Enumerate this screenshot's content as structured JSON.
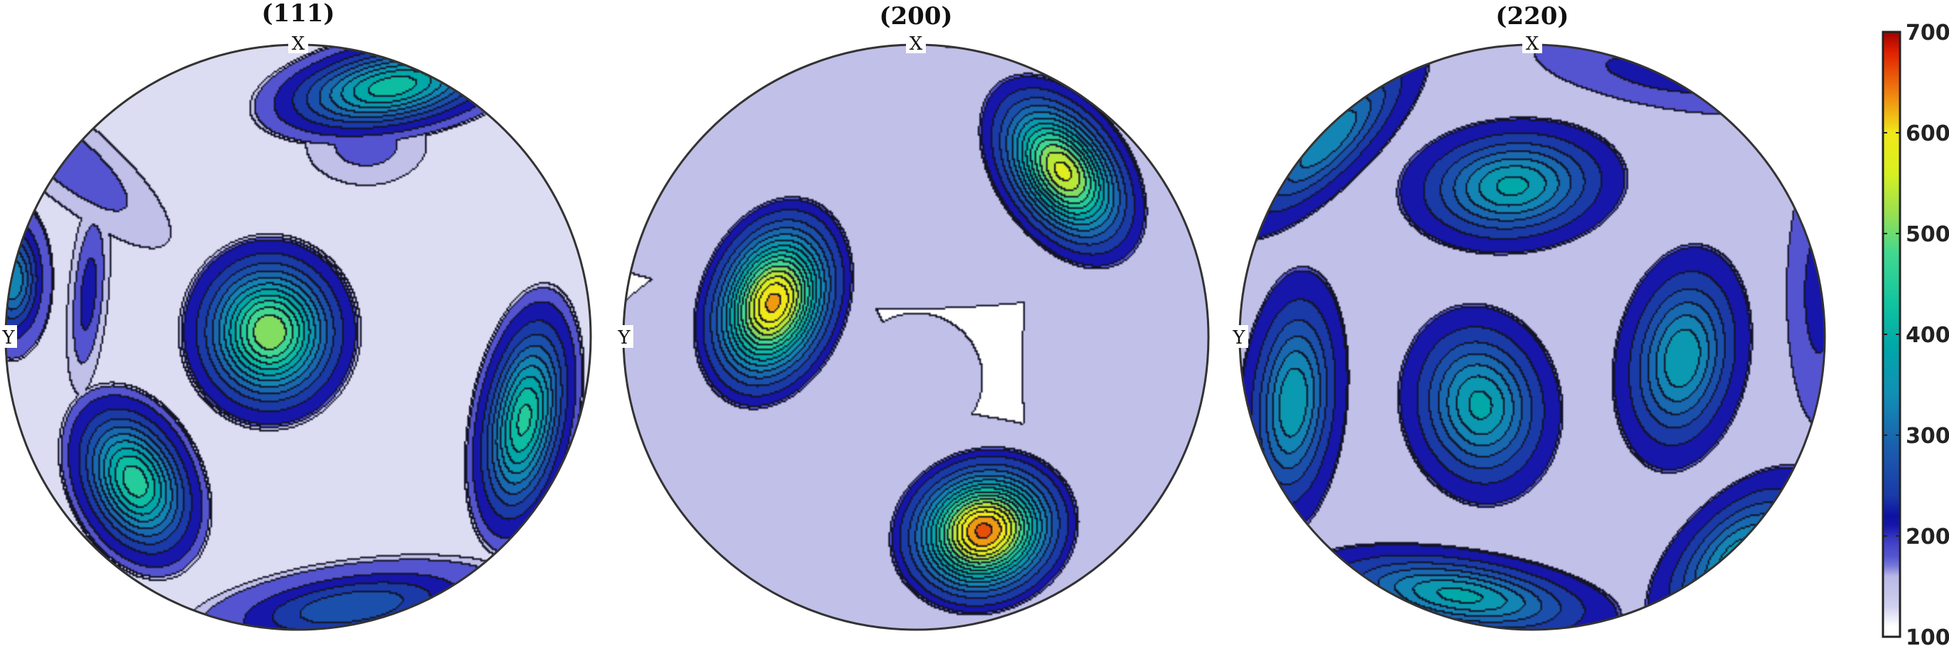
{
  "chart_data": {
    "type": "heatmap",
    "subtype": "pole-figure-contour",
    "figures": [
      {
        "title": "(111)",
        "x_label": "X",
        "y_label": "Y",
        "background_level": 125,
        "outer_level": 100,
        "peaks": [
          {
            "cx": -0.1,
            "cy": -0.02,
            "sx": 0.13,
            "sy": 0.14,
            "angle": 0,
            "amp": 540,
            "floor": 185
          },
          {
            "cx": 0.32,
            "cy": -0.86,
            "sx": 0.21,
            "sy": 0.08,
            "angle": -10,
            "amp": 440,
            "floor": 170
          },
          {
            "cx": -0.56,
            "cy": 0.49,
            "sx": 0.1,
            "sy": 0.15,
            "angle": -25,
            "amp": 470,
            "floor": 175
          },
          {
            "cx": 0.77,
            "cy": 0.28,
            "sx": 0.08,
            "sy": 0.2,
            "angle": 10,
            "amp": 460,
            "floor": 175
          },
          {
            "cx": -0.8,
            "cy": -0.62,
            "sx": 0.2,
            "sy": 0.06,
            "angle": 40,
            "amp": 210,
            "floor": 160
          },
          {
            "cx": 0.23,
            "cy": -0.66,
            "sx": 0.09,
            "sy": 0.06,
            "angle": 0,
            "amp": 200,
            "floor": 160
          },
          {
            "cx": 0.18,
            "cy": 0.92,
            "sx": 0.25,
            "sy": 0.07,
            "angle": -8,
            "amp": 300,
            "floor": 165
          },
          {
            "cx": -0.98,
            "cy": -0.2,
            "sx": 0.06,
            "sy": 0.12,
            "angle": 0,
            "amp": 360,
            "floor": 165
          },
          {
            "cx": -0.72,
            "cy": -0.15,
            "sx": 0.03,
            "sy": 0.15,
            "angle": 5,
            "amp": 230,
            "floor": 160
          }
        ]
      },
      {
        "title": "(200)",
        "x_label": "X",
        "y_label": "Y",
        "background_level": 60,
        "outer_level": 60,
        "peaks": [
          {
            "cx": -0.49,
            "cy": -0.12,
            "sx": 0.11,
            "sy": 0.16,
            "angle": 20,
            "amp": 640,
            "floor": 185
          },
          {
            "cx": 0.5,
            "cy": -0.57,
            "sx": 0.1,
            "sy": 0.16,
            "angle": -35,
            "amp": 580,
            "floor": 185
          },
          {
            "cx": 0.23,
            "cy": 0.66,
            "sx": 0.14,
            "sy": 0.12,
            "angle": -20,
            "amp": 670,
            "floor": 185
          },
          {
            "cx": 0.0,
            "cy": 0.14,
            "sx": 0.1,
            "sy": 0.1,
            "angle": 0,
            "amp": 160,
            "floor": 150
          },
          {
            "cx": 0.1,
            "cy": 0.7,
            "sx": 0.7,
            "sy": 0.2,
            "angle": 10,
            "amp": 160,
            "floor": 150
          },
          {
            "cx": 0.7,
            "cy": 0.1,
            "sx": 0.15,
            "sy": 0.6,
            "angle": 0,
            "amp": 160,
            "floor": 150
          },
          {
            "cx": -0.05,
            "cy": -0.55,
            "sx": 0.6,
            "sy": 0.2,
            "angle": 0,
            "amp": 160,
            "floor": 150
          },
          {
            "cx": -0.7,
            "cy": 0.4,
            "sx": 0.25,
            "sy": 0.35,
            "angle": 30,
            "amp": 160,
            "floor": 150
          },
          {
            "cx": -0.83,
            "cy": 0.85,
            "sx": 0.1,
            "sy": 0.1,
            "angle": 0,
            "amp": 170,
            "floor": 150
          }
        ]
      },
      {
        "title": "(220)",
        "x_label": "X",
        "y_label": "Y",
        "background_level": 150,
        "outer_level": 150,
        "peaks": [
          {
            "cx": -0.07,
            "cy": -0.52,
            "sx": 0.17,
            "sy": 0.1,
            "angle": -5,
            "amp": 400,
            "floor": 200
          },
          {
            "cx": -0.18,
            "cy": 0.23,
            "sx": 0.12,
            "sy": 0.15,
            "angle": -10,
            "amp": 400,
            "floor": 200
          },
          {
            "cx": 0.51,
            "cy": 0.07,
            "sx": 0.1,
            "sy": 0.17,
            "angle": 10,
            "amp": 390,
            "floor": 200
          },
          {
            "cx": -0.82,
            "cy": 0.22,
            "sx": 0.08,
            "sy": 0.2,
            "angle": 5,
            "amp": 390,
            "floor": 200
          },
          {
            "cx": -0.25,
            "cy": 0.88,
            "sx": 0.24,
            "sy": 0.07,
            "angle": 8,
            "amp": 400,
            "floor": 200
          },
          {
            "cx": 0.7,
            "cy": 0.75,
            "sx": 0.17,
            "sy": 0.09,
            "angle": -45,
            "amp": 380,
            "floor": 200
          },
          {
            "cx": -0.7,
            "cy": -0.68,
            "sx": 0.2,
            "sy": 0.07,
            "angle": -45,
            "amp": 360,
            "floor": 200
          },
          {
            "cx": 0.45,
            "cy": -0.9,
            "sx": 0.2,
            "sy": 0.05,
            "angle": 10,
            "amp": 230,
            "floor": 180
          },
          {
            "cx": 0.98,
            "cy": -0.15,
            "sx": 0.05,
            "sy": 0.2,
            "angle": 0,
            "amp": 230,
            "floor": 180
          },
          {
            "cx": 0.1,
            "cy": -0.5,
            "sx": 0.4,
            "sy": 0.25,
            "angle": 0,
            "amp": 80,
            "floor": 60
          },
          {
            "cx": 0.1,
            "cy": 0.3,
            "sx": 0.4,
            "sy": 0.4,
            "angle": 0,
            "amp": 60,
            "floor": 40
          }
        ]
      }
    ],
    "contour_levels": [
      150,
      180,
      210,
      240,
      270,
      300,
      330,
      360,
      390,
      420,
      450,
      480,
      510,
      540,
      570,
      600,
      630,
      660
    ],
    "colorbar": {
      "range": [
        100,
        700
      ],
      "ticks": [
        100,
        200,
        300,
        400,
        500,
        600,
        700
      ],
      "tick_labels": [
        "100",
        "200",
        "300",
        "400",
        "500",
        "600",
        "700"
      ]
    }
  },
  "colormap": {
    "stops": [
      [
        0,
        "#ffffff"
      ],
      [
        110,
        "#ffffff"
      ],
      [
        130,
        "#d0d0ee"
      ],
      [
        160,
        "#b8b8e6"
      ],
      [
        175,
        "#5a5ad2"
      ],
      [
        195,
        "#4040c8"
      ],
      [
        215,
        "#0808a0"
      ],
      [
        240,
        "#1a3aa8"
      ],
      [
        290,
        "#1a5fae"
      ],
      [
        340,
        "#118fb5"
      ],
      [
        390,
        "#00a8a8"
      ],
      [
        430,
        "#10c4a0"
      ],
      [
        480,
        "#40d890"
      ],
      [
        520,
        "#98e050"
      ],
      [
        560,
        "#d8f020"
      ],
      [
        600,
        "#f0e818"
      ],
      [
        640,
        "#f08010"
      ],
      [
        680,
        "#e02000"
      ],
      [
        700,
        "#a00000"
      ]
    ]
  }
}
